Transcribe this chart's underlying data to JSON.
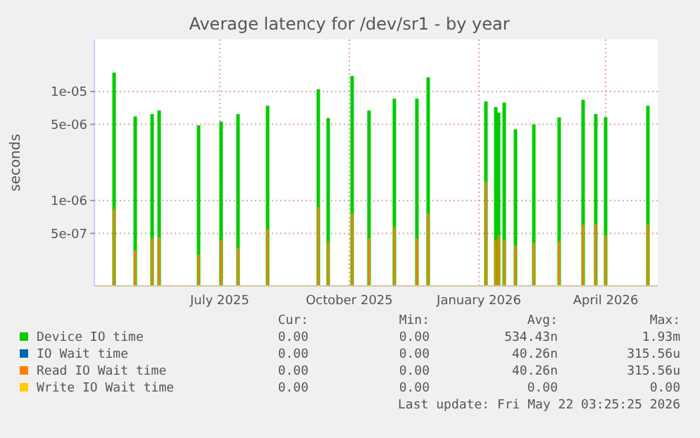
{
  "chart_data": {
    "type": "bar",
    "title": "Average latency for /dev/sr1 - by year",
    "ylabel": "seconds",
    "x": [
      "2025-05-01",
      "2025-05-16",
      "2025-05-28",
      "2025-06-02",
      "2025-06-30",
      "2025-07-16",
      "2025-07-28",
      "2025-08-18",
      "2025-09-23",
      "2025-09-30",
      "2025-10-17",
      "2025-10-29",
      "2025-11-16",
      "2025-12-02",
      "2025-12-10",
      "2026-01-20",
      "2026-01-27",
      "2026-01-29",
      "2026-02-02",
      "2026-02-10",
      "2026-02-23",
      "2026-03-13",
      "2026-03-30",
      "2026-04-08",
      "2026-04-15",
      "2026-05-15"
    ],
    "series": [
      {
        "name": "Device IO time",
        "color": "#00cc00",
        "values": [
          1.49e-05,
          5.9e-06,
          6.2e-06,
          6.7e-06,
          4.9e-06,
          5.3e-06,
          6.2e-06,
          7.4e-06,
          1.05e-05,
          5.7e-06,
          1.39e-05,
          6.7e-06,
          8.6e-06,
          8.6e-06,
          1.35e-05,
          8.1e-06,
          7.2e-06,
          6.4e-06,
          7.9e-06,
          4.5e-06,
          5e-06,
          5.8e-06,
          8.4e-06,
          6.2e-06,
          5.8e-06,
          7.4e-06
        ]
      },
      {
        "name": "IO Wait time",
        "color": "#0066b3",
        "values": [
          null,
          null,
          null,
          null,
          null,
          null,
          null,
          null,
          null,
          null,
          null,
          null,
          null,
          null,
          null,
          null,
          null,
          null,
          null,
          null,
          null,
          null,
          null,
          null,
          null,
          null
        ]
      },
      {
        "name": "Read IO Wait time",
        "color": "#ff8000",
        "values": [
          8.4e-07,
          3.5e-07,
          4.5e-07,
          4.6e-07,
          3.2e-07,
          4.3e-07,
          3.7e-07,
          5.5e-07,
          8.7e-07,
          4.2e-07,
          7.6e-07,
          4.5e-07,
          5.7e-07,
          4.5e-07,
          7.6e-07,
          1.48e-06,
          4.3e-07,
          4.8e-07,
          4.3e-07,
          3.9e-07,
          4.1e-07,
          4.2e-07,
          6e-07,
          6.1e-07,
          4.8e-07,
          6e-07
        ]
      },
      {
        "name": "Write IO Wait time",
        "color": "#ffcc00",
        "values": [
          null,
          null,
          null,
          null,
          null,
          null,
          null,
          null,
          null,
          null,
          null,
          null,
          null,
          null,
          null,
          null,
          null,
          null,
          null,
          null,
          null,
          null,
          null,
          null,
          null,
          null
        ]
      }
    ],
    "xlim": [
      "2025-04-17",
      "2026-05-22"
    ],
    "xticks": [
      {
        "value": "2025-07-15",
        "label": "July 2025"
      },
      {
        "value": "2025-10-15",
        "label": "October 2025"
      },
      {
        "value": "2026-01-15",
        "label": "January 2026"
      },
      {
        "value": "2026-04-15",
        "label": "April 2026"
      }
    ],
    "log": true,
    "ylim": [
      1.65e-07,
      3e-05
    ],
    "yticks": [
      {
        "value": 5e-07,
        "label": "5e-07"
      },
      {
        "value": 1e-06,
        "label": "1e-06"
      },
      {
        "value": 5e-06,
        "label": "5e-06"
      },
      {
        "value": 1e-05,
        "label": "1e-05"
      }
    ],
    "grid": true,
    "legend": "bottom",
    "annotations": [
      "Cur:",
      "Min:",
      "Avg:",
      "Max:",
      "0.00",
      "0.00",
      "534.43n",
      "1.93m",
      "0.00",
      "0.00",
      "40.26n",
      "315.56u",
      "0.00",
      "0.00",
      "40.26n",
      "315.56u",
      "0.00",
      "0.00",
      "0.00",
      "0.00",
      "Last update: Fri May 22 03:25:25 2026"
    ]
  }
}
